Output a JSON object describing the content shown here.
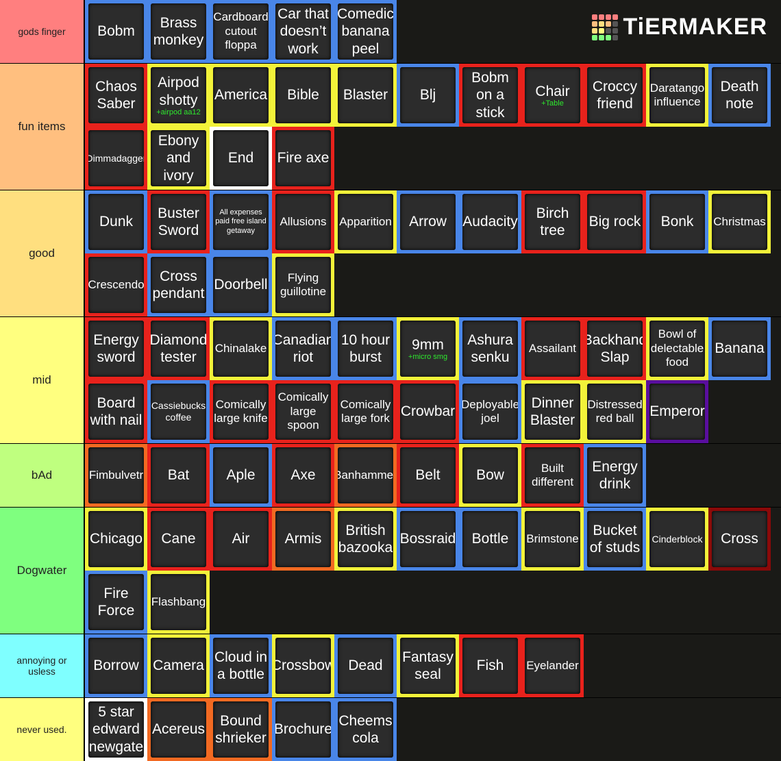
{
  "logo": "TiERMAKER",
  "tiers": [
    {
      "label": "gods finger",
      "color": "#ff7f7f",
      "items": [
        {
          "name": "Bobm",
          "border": "#4a86e8"
        },
        {
          "name": "Brass monkey",
          "border": "#4a86e8"
        },
        {
          "name": "Cardboard cutout floppa",
          "border": "#4a86e8"
        },
        {
          "name": "Car that doesn’t work",
          "border": "#4a86e8"
        },
        {
          "name": "Comedic banana peel",
          "border": "#4a86e8"
        }
      ]
    },
    {
      "label": "fun items",
      "color": "#ffbf7f",
      "items": [
        {
          "name": "Chaos Saber",
          "border": "#e8231d"
        },
        {
          "name": "Airpod shotty",
          "sub": "+airpod aa12",
          "border": "#f2f23a"
        },
        {
          "name": "America",
          "border": "#f2f23a"
        },
        {
          "name": "Bible",
          "border": "#f2f23a"
        },
        {
          "name": "Blaster",
          "border": "#f2f23a"
        },
        {
          "name": "Blj",
          "border": "#4a86e8"
        },
        {
          "name": "Bobm on a stick",
          "border": "#e8231d"
        },
        {
          "name": "Chair",
          "sub": "+Table",
          "border": "#e8231d"
        },
        {
          "name": "Croccy friend",
          "border": "#e8231d"
        },
        {
          "name": "Daratango influence",
          "border": "#f2f23a"
        },
        {
          "name": "Death note",
          "border": "#4a86e8"
        },
        {
          "name": "Dimmadagger",
          "border": "#e8231d"
        },
        {
          "name": "Ebony and ivory",
          "border": "#f2f23a"
        },
        {
          "name": "End",
          "border": "#ffffff"
        },
        {
          "name": "Fire axe",
          "border": "#e8231d"
        }
      ]
    },
    {
      "label": "good",
      "color": "#ffdf7f",
      "items": [
        {
          "name": "Dunk",
          "border": "#4a86e8"
        },
        {
          "name": "Buster Sword",
          "border": "#e8231d"
        },
        {
          "name": "All expenses paid free island getaway",
          "border": "#4a86e8"
        },
        {
          "name": "Allusions",
          "border": "#e8231d"
        },
        {
          "name": "Apparition",
          "border": "#f2f23a"
        },
        {
          "name": "Arrow",
          "border": "#4a86e8"
        },
        {
          "name": "Audacity",
          "border": "#4a86e8"
        },
        {
          "name": "Birch tree",
          "border": "#e8231d"
        },
        {
          "name": "Big rock",
          "border": "#e8231d"
        },
        {
          "name": "Bonk",
          "border": "#4a86e8"
        },
        {
          "name": "Christmas",
          "border": "#f2f23a"
        },
        {
          "name": "Crescendo",
          "border": "#e8231d"
        },
        {
          "name": "Cross pendant",
          "border": "#4a86e8"
        },
        {
          "name": "Doorbell",
          "border": "#4a86e8"
        },
        {
          "name": "Flying guillotine",
          "border": "#f2f23a"
        }
      ]
    },
    {
      "label": "mid",
      "color": "#ffff7f",
      "items": [
        {
          "name": "Energy sword",
          "border": "#e8231d"
        },
        {
          "name": "Diamond tester",
          "border": "#e8231d"
        },
        {
          "name": "Chinalake",
          "border": "#f2f23a"
        },
        {
          "name": "Canadian riot",
          "border": "#4a86e8"
        },
        {
          "name": "10 hour burst",
          "border": "#4a86e8"
        },
        {
          "name": "9mm",
          "sub": "+micro smg",
          "border": "#f2f23a"
        },
        {
          "name": "Ashura senku",
          "border": "#4a86e8"
        },
        {
          "name": "Assailant",
          "border": "#e8231d"
        },
        {
          "name": "Backhand Slap",
          "border": "#e8231d"
        },
        {
          "name": "Bowl of delectable food",
          "border": "#f2f23a"
        },
        {
          "name": "Banana",
          "border": "#4a86e8"
        },
        {
          "name": "Board with nail",
          "border": "#e8231d"
        },
        {
          "name": "Cassiebucks coffee",
          "border": "#4a86e8"
        },
        {
          "name": "Comically large knife",
          "border": "#e8231d"
        },
        {
          "name": "Comically large spoon",
          "border": "#e8231d"
        },
        {
          "name": "Comically large fork",
          "border": "#e8231d"
        },
        {
          "name": "Crowbar",
          "border": "#e8231d"
        },
        {
          "name": "Deployable joel",
          "border": "#4a86e8"
        },
        {
          "name": "Dinner Blaster",
          "border": "#f2f23a"
        },
        {
          "name": "Distressed red ball",
          "border": "#f2f23a"
        },
        {
          "name": "Emperor",
          "border": "#5a0f9e"
        }
      ]
    },
    {
      "label": "bAd",
      "color": "#bfff7f",
      "items": [
        {
          "name": "Fimbulvetr",
          "border": "#f26a22"
        },
        {
          "name": "Bat",
          "border": "#e8231d"
        },
        {
          "name": "Aple",
          "border": "#4a86e8"
        },
        {
          "name": "Axe",
          "border": "#e8231d"
        },
        {
          "name": "Banhammer",
          "border": "#f26a22"
        },
        {
          "name": "Belt",
          "border": "#e8231d"
        },
        {
          "name": "Bow",
          "border": "#f2f23a"
        },
        {
          "name": "Built different",
          "border": "#e8231d"
        },
        {
          "name": "Energy drink",
          "border": "#4a86e8"
        }
      ]
    },
    {
      "label": "Dogwater",
      "color": "#7fff7f",
      "items": [
        {
          "name": "Chicago",
          "border": "#f2f23a"
        },
        {
          "name": "Cane",
          "border": "#e8231d"
        },
        {
          "name": "Air",
          "border": "#e8231d"
        },
        {
          "name": "Armis",
          "border": "#f26a22"
        },
        {
          "name": "British bazooka",
          "border": "#f2f23a"
        },
        {
          "name": "Bossraid",
          "border": "#4a86e8"
        },
        {
          "name": "Bottle",
          "border": "#4a86e8"
        },
        {
          "name": "Brimstone",
          "border": "#f2f23a"
        },
        {
          "name": "Bucket of studs",
          "border": "#4a86e8"
        },
        {
          "name": "Cinderblock",
          "border": "#f2f23a"
        },
        {
          "name": "Cross",
          "border": "#8b0a0a"
        },
        {
          "name": "Fire Force",
          "border": "#4a86e8"
        },
        {
          "name": "Flashbang",
          "border": "#f2f23a"
        }
      ]
    },
    {
      "label": "annoying or usless",
      "color": "#7fffff",
      "items": [
        {
          "name": "Borrow",
          "border": "#4a86e8"
        },
        {
          "name": "Camera",
          "border": "#f2f23a"
        },
        {
          "name": "Cloud in a bottle",
          "border": "#4a86e8"
        },
        {
          "name": "Crossbow",
          "border": "#f2f23a"
        },
        {
          "name": "Dead",
          "border": "#4a86e8"
        },
        {
          "name": "Fantasy seal",
          "border": "#f2f23a"
        },
        {
          "name": "Fish",
          "border": "#e8231d"
        },
        {
          "name": "Eyelander",
          "border": "#e8231d"
        }
      ]
    },
    {
      "label": "never used.",
      "color": "#ffff7f",
      "items": [
        {
          "name": "5 star edward newgate",
          "border": "#ffffff"
        },
        {
          "name": "Acereus",
          "border": "#f26a22"
        },
        {
          "name": "Bound shrieker",
          "border": "#f26a22"
        },
        {
          "name": "Brochure",
          "border": "#4a86e8"
        },
        {
          "name": "Cheems cola",
          "border": "#4a86e8"
        }
      ]
    }
  ]
}
